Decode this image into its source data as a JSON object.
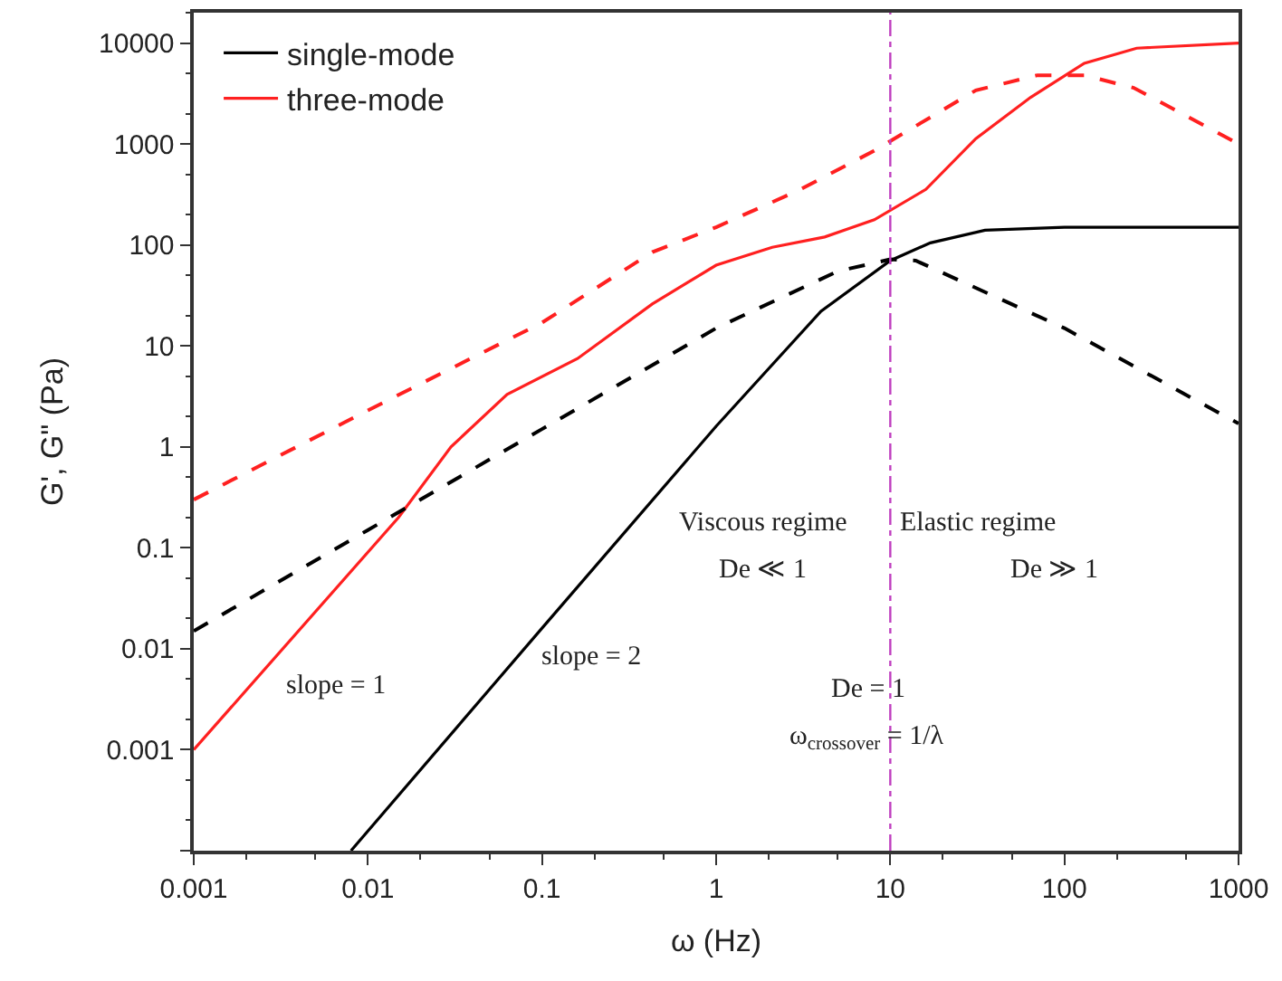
{
  "chart_data": {
    "type": "line",
    "xlabel": "ω (Hz)",
    "ylabel": "G', G\" (Pa)",
    "log": "xy",
    "legend": "top left",
    "xlim": [
      0.001,
      1000
    ],
    "xticks": [
      0.001,
      0.01,
      0.1,
      1,
      10,
      100,
      1000
    ],
    "ylim": [
      0.0001,
      20000
    ],
    "yticks": [
      {
        "value": 0.0001,
        "label": null
      },
      0.001,
      0.01,
      0.1,
      1,
      10,
      100,
      1000,
      10000
    ],
    "series": [
      {
        "name": "single-mode",
        "color": "#000000",
        "line_style": "solid",
        "x": [
          0.008,
          0.1,
          1,
          4,
          10,
          17,
          35,
          100,
          1000
        ],
        "values": [
          0.0001,
          0.016,
          1.6,
          22,
          70,
          105,
          140,
          150,
          150
        ]
      },
      {
        "name": "three-mode",
        "color": "#ff2020",
        "line_style": "solid",
        "x": [
          0.001,
          0.015,
          0.03,
          0.063,
          0.16,
          0.43,
          1,
          2.1,
          4.2,
          8.1,
          16,
          31,
          64,
          130,
          260,
          1000
        ],
        "values": [
          0.001,
          0.2,
          1,
          3.3,
          7.5,
          26,
          63,
          95,
          120,
          178,
          355,
          1130,
          2900,
          6300,
          8900,
          10000
        ]
      },
      {
        "color": "#000000",
        "line_style": "dashed",
        "x": [
          0.001,
          0.01,
          0.1,
          1,
          5,
          10,
          14,
          100,
          1000
        ],
        "values": [
          0.015,
          0.15,
          1.5,
          15,
          55,
          72,
          70,
          15,
          1.7
        ]
      },
      {
        "color": "#ff2020",
        "line_style": "dashed",
        "x": [
          0.001,
          0.01,
          0.1,
          0.43,
          1,
          3,
          8,
          31,
          70,
          130,
          250,
          1000
        ],
        "values": [
          0.3,
          2.3,
          17,
          85,
          150,
          350,
          850,
          3400,
          4800,
          4800,
          3600,
          1000
        ]
      }
    ],
    "ref_lines": [
      {
        "axis": "x",
        "value": 10,
        "color": "#c040c0",
        "line_style": "dashdot"
      }
    ],
    "annotations": [
      "slope = 1",
      "slope = 2",
      "Viscous regime",
      "De ≪ 1",
      "Elastic regime",
      "De ≫ 1",
      "De = 1",
      "ω$_{crossover}$ = 1/λ"
    ]
  }
}
